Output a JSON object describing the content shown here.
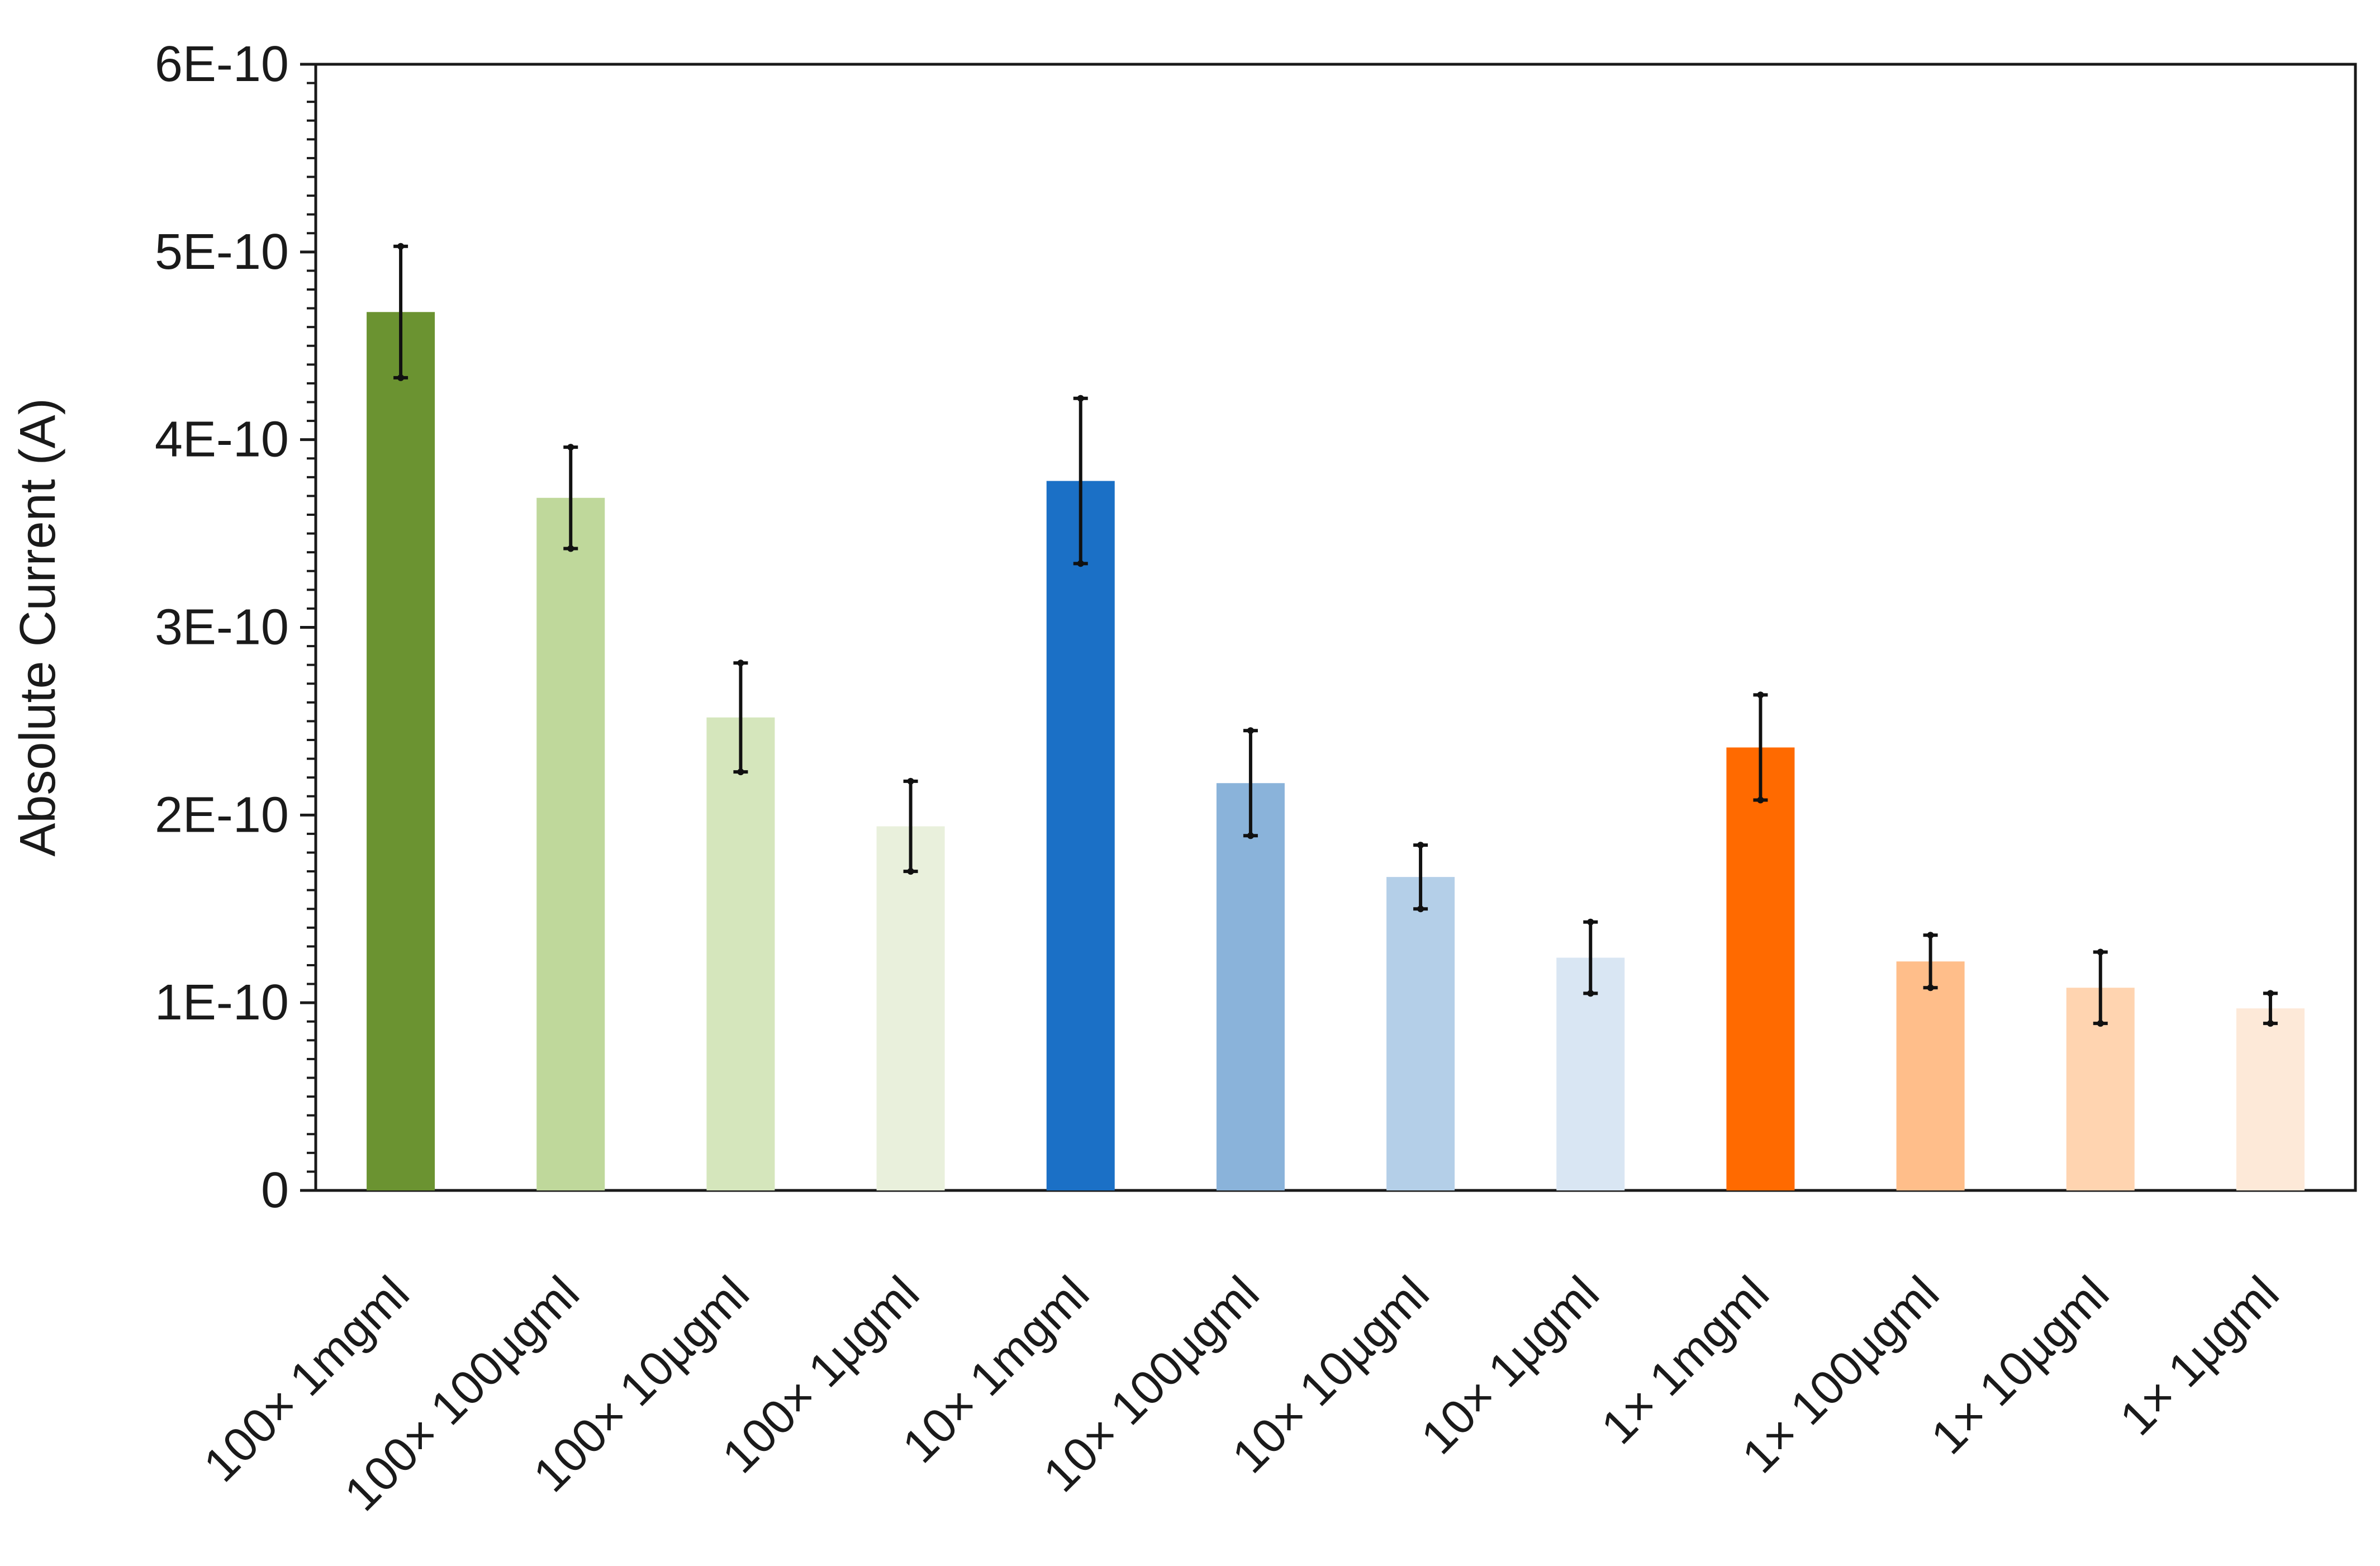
{
  "chart_data": {
    "type": "bar",
    "title": "",
    "xlabel": "",
    "ylabel": "Absolute Current (A)",
    "ylim": [
      0,
      6e-10
    ],
    "yticks": [
      0,
      1e-10,
      2e-10,
      3e-10,
      4e-10,
      5e-10,
      6e-10
    ],
    "ytick_labels": [
      "0",
      "1E-10",
      "2E-10",
      "3E-10",
      "4E-10",
      "5E-10",
      "6E-10"
    ],
    "grid": false,
    "legend": "none",
    "categories": [
      "100× 1mgml",
      "100× 100µgml",
      "100× 10µgml",
      "100× 1µgml",
      "10× 1mgml",
      "10× 100µgml",
      "10× 10µgml",
      "10× 1µgml",
      "1× 1mgml",
      "1× 100µgml",
      "1× 10µgml",
      "1× 1µgml"
    ],
    "values": [
      4.68e-10,
      3.69e-10,
      2.52e-10,
      1.94e-10,
      3.78e-10,
      2.17e-10,
      1.67e-10,
      1.24e-10,
      2.36e-10,
      1.22e-10,
      1.08e-10,
      9.7e-11
    ],
    "error_bars": [
      3.5e-11,
      2.7e-11,
      2.9e-11,
      2.4e-11,
      4.4e-11,
      2.8e-11,
      1.7e-11,
      1.9e-11,
      2.8e-11,
      1.4e-11,
      1.9e-11,
      8e-12
    ],
    "colors": [
      "#6b9331",
      "#bfd89b",
      "#d5e6bc",
      "#e9f0dc",
      "#1b70c6",
      "#8ab3da",
      "#b4cfe8",
      "#d9e6f3",
      "#ff6a00",
      "#ffbe8a",
      "#ffd4b0",
      "#fde9d8"
    ]
  }
}
